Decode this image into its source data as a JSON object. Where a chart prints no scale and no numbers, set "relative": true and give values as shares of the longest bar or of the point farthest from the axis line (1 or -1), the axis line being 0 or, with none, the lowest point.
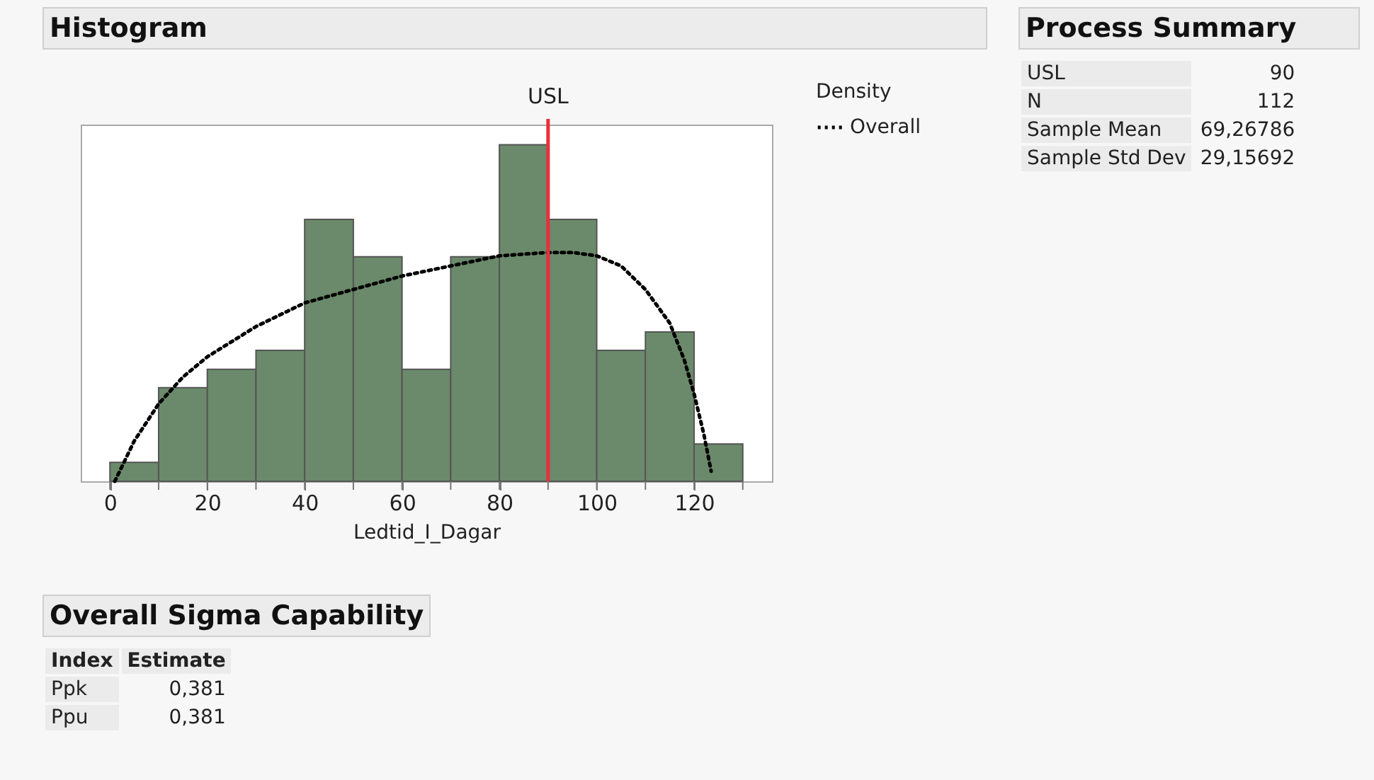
{
  "chart_data": [
    {
      "type": "histogram",
      "title": "Histogram",
      "xlabel": "Ledtid_I_Dagar",
      "legend_title": "Density",
      "relative": true,
      "legend": "top right",
      "grid": false,
      "bins": [
        0,
        10,
        20,
        30,
        40,
        50,
        60,
        70,
        80,
        90,
        100,
        110,
        120,
        130
      ],
      "xlim": [
        -6,
        136
      ],
      "xticks": [
        0,
        {
          "value": 10,
          "label": null
        },
        20,
        {
          "value": 30,
          "label": null
        },
        40,
        {
          "value": 50,
          "label": null
        },
        60,
        {
          "value": 70,
          "label": null
        },
        80,
        {
          "value": 90,
          "label": null
        },
        100,
        {
          "value": 110,
          "label": null
        },
        120,
        {
          "value": 130,
          "label": null
        }
      ],
      "series": [
        {
          "type": "histogram",
          "color": "#6b8a6b",
          "values": [
            0.056,
            0.278,
            0.333,
            0.389,
            0.778,
            0.667,
            0.333,
            0.667,
            1,
            0.778,
            0.389,
            0.444,
            0.111
          ]
        },
        {
          "type": "line",
          "name": "Overall",
          "color": "#000000",
          "line_style": "dotted",
          "marker": "none",
          "x": [
            1,
            5,
            10,
            15,
            20,
            30,
            40,
            50,
            60,
            70,
            80,
            90,
            95,
            100,
            105,
            110,
            115,
            118,
            120,
            122,
            123.5
          ],
          "values": [
            0,
            0.12,
            0.23,
            0.31,
            0.37,
            0.46,
            0.53,
            0.57,
            0.61,
            0.64,
            0.67,
            0.68,
            0.68,
            0.67,
            0.64,
            0.57,
            0.47,
            0.36,
            0.26,
            0.14,
            0.03
          ]
        }
      ],
      "ref_lines": [
        {
          "axis": "x",
          "value": 90,
          "label": "USL",
          "color": "#e8303a",
          "line_style": "solid"
        }
      ]
    },
    {
      "type": "other",
      "title": "Process Summary",
      "annotations": [
        "USL",
        "90",
        "N",
        "112",
        "Sample Mean",
        "69,26786",
        "Sample Std Dev",
        "29,15692"
      ]
    },
    {
      "type": "other",
      "title": "Overall Sigma Capability",
      "categories": [
        "Index",
        "Estimate"
      ],
      "annotations": [
        "Ppk",
        "0,381",
        "Ppu",
        "0,381"
      ]
    }
  ]
}
